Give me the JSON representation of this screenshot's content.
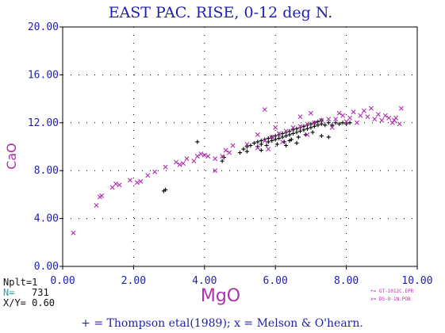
{
  "chart_data": {
    "type": "scatter",
    "title": "EAST PAC. RISE, 0-12 deg N.",
    "xlabel": "MgO",
    "ylabel": "CaO",
    "xlim": [
      0,
      10
    ],
    "ylim": [
      0,
      20
    ],
    "xticks": [
      "0.00",
      "2.00",
      "4.00",
      "6.00",
      "8.00",
      "10.00"
    ],
    "yticks": [
      "0.00",
      "4.00",
      "8.00",
      "12.00",
      "16.00",
      "20.00"
    ],
    "grid": "dotted",
    "series": [
      {
        "name": "Thompson etal(1989)",
        "marker": "+",
        "color": "#000000",
        "points": [
          [
            2.85,
            6.3
          ],
          [
            2.9,
            6.4
          ],
          [
            3.8,
            10.4
          ],
          [
            4.5,
            8.8
          ],
          [
            4.55,
            9.1
          ],
          [
            5.1,
            9.8
          ],
          [
            5.2,
            10.0
          ],
          [
            5.3,
            10.1
          ],
          [
            5.4,
            10.3
          ],
          [
            5.5,
            10.4
          ],
          [
            5.5,
            10.0
          ],
          [
            5.6,
            10.5
          ],
          [
            5.6,
            10.2
          ],
          [
            5.7,
            10.6
          ],
          [
            5.75,
            10.1
          ],
          [
            5.8,
            10.7
          ],
          [
            5.8,
            10.4
          ],
          [
            5.9,
            10.8
          ],
          [
            5.9,
            10.5
          ],
          [
            6.0,
            10.9
          ],
          [
            6.0,
            10.6
          ],
          [
            6.05,
            10.2
          ],
          [
            6.1,
            11.0
          ],
          [
            6.1,
            10.7
          ],
          [
            6.2,
            11.1
          ],
          [
            6.2,
            10.8
          ],
          [
            6.25,
            10.4
          ],
          [
            6.3,
            11.2
          ],
          [
            6.3,
            10.9
          ],
          [
            6.4,
            11.3
          ],
          [
            6.4,
            11.0
          ],
          [
            6.45,
            10.6
          ],
          [
            6.5,
            11.4
          ],
          [
            6.5,
            11.1
          ],
          [
            6.6,
            11.5
          ],
          [
            6.6,
            11.2
          ],
          [
            6.65,
            10.8
          ],
          [
            6.7,
            11.6
          ],
          [
            6.7,
            11.3
          ],
          [
            6.8,
            11.7
          ],
          [
            6.8,
            11.4
          ],
          [
            6.85,
            11.0
          ],
          [
            6.9,
            11.8
          ],
          [
            6.9,
            11.5
          ],
          [
            7.0,
            11.9
          ],
          [
            7.0,
            11.6
          ],
          [
            7.05,
            11.2
          ],
          [
            7.1,
            12.0
          ],
          [
            7.1,
            11.7
          ],
          [
            7.2,
            12.1
          ],
          [
            7.2,
            11.8
          ],
          [
            7.3,
            12.2
          ],
          [
            7.3,
            11.9
          ],
          [
            7.4,
            11.8
          ],
          [
            7.5,
            12.0
          ],
          [
            7.6,
            11.8
          ],
          [
            7.7,
            12.0
          ],
          [
            7.8,
            11.9
          ],
          [
            7.9,
            12.0
          ],
          [
            8.0,
            11.9
          ],
          [
            8.1,
            12.0
          ],
          [
            6.4,
            10.5
          ],
          [
            6.6,
            10.3
          ],
          [
            6.3,
            10.1
          ],
          [
            7.3,
            10.9
          ],
          [
            7.5,
            10.8
          ],
          [
            5.2,
            9.6
          ],
          [
            5.6,
            9.7
          ],
          [
            5.0,
            9.5
          ]
        ]
      },
      {
        "name": "Melson & O'hearn.",
        "marker": "x",
        "color": "#b02fb0",
        "points": [
          [
            0.3,
            2.8
          ],
          [
            0.95,
            5.1
          ],
          [
            1.05,
            5.8
          ],
          [
            1.1,
            5.9
          ],
          [
            1.4,
            6.6
          ],
          [
            1.5,
            6.9
          ],
          [
            1.6,
            6.8
          ],
          [
            1.9,
            7.2
          ],
          [
            2.1,
            7.0
          ],
          [
            2.2,
            7.1
          ],
          [
            2.4,
            7.6
          ],
          [
            2.6,
            7.9
          ],
          [
            2.9,
            8.3
          ],
          [
            3.2,
            8.7
          ],
          [
            3.4,
            8.6
          ],
          [
            3.5,
            9.0
          ],
          [
            3.7,
            8.8
          ],
          [
            3.8,
            9.2
          ],
          [
            3.9,
            9.4
          ],
          [
            4.1,
            9.2
          ],
          [
            4.3,
            9.0
          ],
          [
            4.5,
            9.2
          ],
          [
            4.6,
            9.7
          ],
          [
            4.7,
            9.5
          ],
          [
            4.3,
            8.0
          ],
          [
            4.8,
            10.1
          ],
          [
            5.2,
            10.2
          ],
          [
            5.5,
            9.9
          ],
          [
            5.7,
            10.5
          ],
          [
            5.9,
            10.8
          ],
          [
            6.1,
            11.1
          ],
          [
            6.3,
            11.3
          ],
          [
            6.5,
            11.6
          ],
          [
            6.7,
            11.7
          ],
          [
            6.9,
            11.9
          ],
          [
            7.1,
            12.0
          ],
          [
            7.3,
            12.2
          ],
          [
            7.5,
            12.3
          ],
          [
            7.7,
            12.3
          ],
          [
            7.9,
            12.6
          ],
          [
            8.1,
            12.4
          ],
          [
            8.2,
            12.9
          ],
          [
            8.4,
            12.6
          ],
          [
            8.5,
            13.0
          ],
          [
            8.6,
            12.5
          ],
          [
            8.7,
            13.2
          ],
          [
            8.8,
            12.3
          ],
          [
            8.9,
            12.7
          ],
          [
            9.0,
            12.2
          ],
          [
            9.1,
            12.6
          ],
          [
            9.2,
            12.4
          ],
          [
            9.3,
            12.0
          ],
          [
            9.4,
            12.4
          ],
          [
            9.55,
            13.2
          ],
          [
            7.0,
            12.8
          ],
          [
            6.7,
            12.5
          ],
          [
            5.5,
            11.0
          ],
          [
            5.8,
            9.8
          ],
          [
            6.2,
            10.4
          ],
          [
            6.9,
            11.0
          ],
          [
            5.7,
            13.1
          ],
          [
            6.0,
            11.6
          ],
          [
            7.6,
            11.6
          ],
          [
            8.3,
            12.0
          ],
          [
            8.0,
            12.1
          ],
          [
            7.8,
            12.8
          ],
          [
            9.35,
            12.2
          ],
          [
            9.5,
            11.9
          ],
          [
            4.0,
            9.3
          ],
          [
            3.3,
            8.5
          ]
        ]
      }
    ]
  },
  "legend": {
    "box_line_1": "+= GT-1012C.EPR",
    "box_line_2": "x= DS-O-1N.POB"
  },
  "stats": {
    "nplt": "Nplt=1",
    "n_label": "N=",
    "n_value": "731",
    "xy": "X/Y= 0.60"
  },
  "footer": "+ = Thompson etal(1989); x = Melson & O'hearn.",
  "colors": {
    "title": "#1f1faa",
    "axis_label": "#b02fb0",
    "tick": "#1f1faa",
    "stats_accent": "#1fa8b0"
  }
}
